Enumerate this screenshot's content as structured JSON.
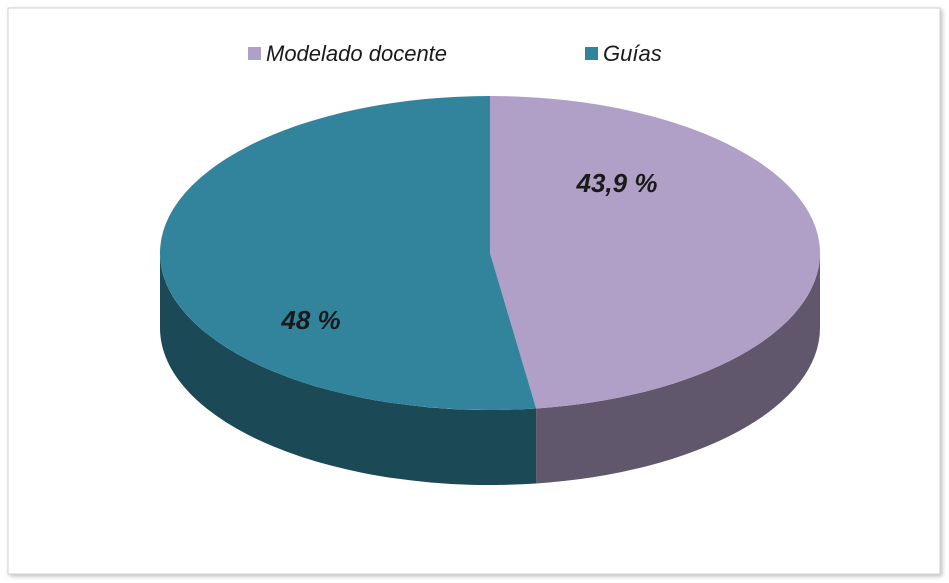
{
  "chart_data": {
    "type": "pie",
    "categories": [
      "Modelado docente",
      "Guías"
    ],
    "values": [
      43.9,
      48
    ],
    "value_labels": [
      "43,9 %",
      "48 %"
    ],
    "colors": [
      "#b09fc6",
      "#31849b"
    ],
    "legend": "top"
  }
}
